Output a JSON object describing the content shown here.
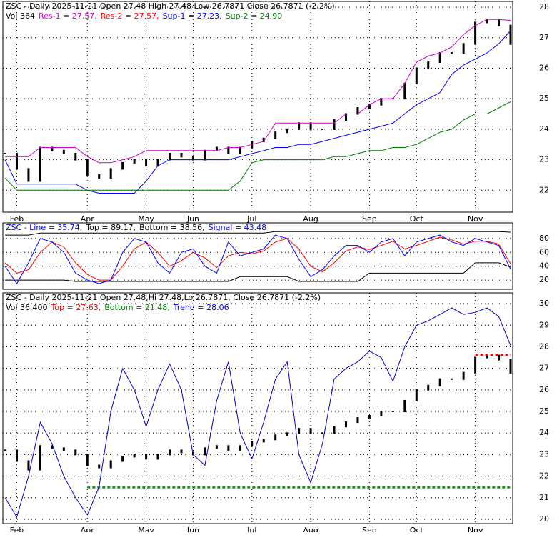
{
  "chart_data": [
    {
      "type": "line",
      "header": [
        [
          {
            "text": "ZSC - Daily 2025-11-21 Open 27.48  High 27.48  Low 26.7871  Close 26.7871 (-2.2%)",
            "color": "#000000"
          }
        ],
        [
          {
            "text": "Vol 364",
            "color": "#000000"
          },
          {
            "text": "Res-1 = 27.57,",
            "color": "#cc00cc"
          },
          {
            "text": "Res-2 = 27.57,",
            "color": "#ff0000"
          },
          {
            "text": "Sup-1 = 27.23,",
            "color": "#0000ff"
          },
          {
            "text": "Sup-2 = 24.90",
            "color": "#008000"
          }
        ]
      ],
      "categories": [
        null,
        "Feb",
        null,
        null,
        null,
        null,
        null,
        "Apr",
        null,
        null,
        null,
        null,
        "May",
        null,
        null,
        null,
        "Jun",
        null,
        null,
        null,
        null,
        "Jul",
        null,
        null,
        null,
        null,
        "Aug",
        null,
        null,
        null,
        null,
        "Sep",
        null,
        null,
        null,
        "Oct",
        null,
        null,
        null,
        null,
        "Nov",
        null,
        null,
        null
      ],
      "ylim": [
        21.28,
        28.19
      ],
      "yticks": [
        22,
        23,
        24,
        25,
        26,
        27,
        28
      ],
      "grid": true,
      "series": [
        {
          "color": "#000000",
          "style": "bars",
          "values": [
            23.2,
            22.7,
            22.3,
            23.4,
            23.3,
            23.2,
            23.0,
            22.5,
            22.4,
            22.7,
            22.9,
            23.0,
            22.8,
            23.0,
            23.2,
            23.1,
            23.0,
            23.3,
            23.4,
            23.2,
            23.4,
            23.6,
            23.7,
            23.9,
            24.0,
            24.2,
            24.0,
            24.0,
            24.3,
            24.5,
            24.7,
            24.8,
            25.0,
            25.0,
            25.5,
            26.0,
            26.2,
            26.5,
            26.5,
            26.8,
            27.5,
            27.6,
            27.4,
            26.79
          ]
        },
        {
          "color": "#cc00cc",
          "values": [
            23.1,
            23.1,
            23.1,
            23.4,
            23.4,
            23.4,
            23.4,
            23.1,
            22.9,
            22.9,
            23.0,
            23.1,
            23.3,
            23.3,
            23.3,
            23.3,
            23.3,
            23.3,
            23.3,
            23.4,
            23.4,
            23.5,
            23.6,
            24.2,
            24.2,
            24.2,
            24.2,
            24.2,
            24.2,
            24.5,
            24.5,
            24.8,
            25.0,
            25.0,
            25.5,
            26.2,
            26.4,
            26.5,
            26.7,
            27.1,
            27.4,
            27.6,
            27.6,
            27.57
          ]
        },
        {
          "color": "#0000ff",
          "values": [
            23.0,
            22.2,
            22.2,
            22.2,
            22.2,
            22.2,
            22.2,
            22.0,
            21.9,
            21.9,
            21.9,
            21.9,
            22.3,
            22.8,
            23.0,
            23.0,
            23.0,
            23.0,
            23.0,
            23.0,
            23.1,
            23.2,
            23.3,
            23.4,
            23.4,
            23.5,
            23.5,
            23.6,
            23.7,
            23.8,
            23.9,
            24.0,
            24.1,
            24.2,
            24.5,
            24.8,
            25.0,
            25.2,
            25.8,
            26.1,
            26.3,
            26.5,
            26.8,
            27.23
          ]
        },
        {
          "color": "#008000",
          "values": [
            22.4,
            22.0,
            22.0,
            22.0,
            22.0,
            22.0,
            22.0,
            22.0,
            22.0,
            22.0,
            22.0,
            22.0,
            22.0,
            22.0,
            22.0,
            22.0,
            22.0,
            22.0,
            22.0,
            22.0,
            22.3,
            22.9,
            23.0,
            23.0,
            23.0,
            23.0,
            23.0,
            23.0,
            23.1,
            23.1,
            23.2,
            23.3,
            23.3,
            23.4,
            23.4,
            23.5,
            23.7,
            23.9,
            24.0,
            24.3,
            24.5,
            24.5,
            24.7,
            24.9
          ]
        }
      ]
    },
    {
      "type": "line",
      "header": [
        [
          {
            "text": "ZSC - Line = 35.74,",
            "color": "#0000ff"
          },
          {
            "text": "Top = 89.17,",
            "color": "#000000"
          },
          {
            "text": "Bottom = 38.56,",
            "color": "#000000"
          },
          {
            "text": "Signal = 43.48",
            "color": "#0000ff"
          }
        ]
      ],
      "ylim": [
        6.7,
        102.6
      ],
      "yticks": [
        20,
        40,
        60,
        80
      ],
      "grid": true,
      "series": [
        {
          "color": "#000000",
          "values": [
            85,
            85,
            85,
            88,
            88,
            88,
            88,
            88,
            88,
            88,
            88,
            88,
            88,
            88,
            88,
            88,
            88,
            88,
            88,
            88,
            88,
            88,
            88,
            90,
            90,
            90,
            90,
            90,
            90,
            90,
            90,
            90,
            90,
            90,
            90,
            90,
            90,
            90,
            90,
            90,
            90,
            90,
            90,
            89.17
          ]
        },
        {
          "color": "#000000",
          "values": [
            20,
            20,
            20,
            20,
            20,
            20,
            18,
            18,
            18,
            18,
            18,
            18,
            18,
            18,
            18,
            18,
            18,
            18,
            18,
            18,
            25,
            25,
            25,
            25,
            25,
            18,
            18,
            18,
            18,
            18,
            18,
            30,
            30,
            30,
            30,
            30,
            30,
            30,
            30,
            30,
            45,
            45,
            45,
            38.56
          ]
        },
        {
          "color": "#ff0000",
          "values": [
            45,
            30,
            35,
            60,
            75,
            68,
            45,
            28,
            20,
            20,
            40,
            65,
            75,
            60,
            40,
            48,
            60,
            52,
            38,
            55,
            60,
            58,
            62,
            75,
            80,
            65,
            40,
            32,
            45,
            62,
            68,
            64,
            70,
            76,
            65,
            70,
            76,
            82,
            78,
            72,
            76,
            76,
            72,
            43.48
          ]
        },
        {
          "color": "#0000ff",
          "values": [
            40,
            15,
            45,
            80,
            75,
            60,
            30,
            20,
            15,
            20,
            60,
            80,
            75,
            45,
            30,
            60,
            65,
            40,
            30,
            75,
            55,
            60,
            65,
            85,
            80,
            50,
            25,
            35,
            55,
            70,
            70,
            60,
            75,
            80,
            55,
            75,
            80,
            85,
            75,
            70,
            80,
            75,
            70,
            35.74
          ]
        }
      ]
    },
    {
      "type": "line",
      "header": [
        [
          {
            "text": "ZSC - Daily 2025-11-21 Open 27.48,Hi 27.48,Lo 26.7871, Close 26.7871 (-2.2%)",
            "color": "#000000"
          }
        ],
        [
          {
            "text": "Vol 36,400",
            "color": "#000000"
          },
          {
            "text": "Top = 27.63,",
            "color": "#ff0000"
          },
          {
            "text": "Bottom = 21.48,",
            "color": "#008000"
          },
          {
            "text": "Trend = 28.06",
            "color": "#0000ff"
          }
        ]
      ],
      "categories": [
        null,
        "Feb",
        null,
        null,
        null,
        null,
        null,
        "Apr",
        null,
        null,
        null,
        null,
        "May",
        null,
        null,
        null,
        "Jun",
        null,
        null,
        null,
        null,
        "Jul",
        null,
        null,
        null,
        null,
        "Aug",
        null,
        null,
        null,
        null,
        "Sep",
        null,
        null,
        null,
        "Oct",
        null,
        null,
        null,
        null,
        "Nov",
        null,
        null,
        null
      ],
      "ylim": [
        19.8,
        30.5
      ],
      "yticks": [
        20,
        21,
        22,
        23,
        24,
        25,
        26,
        27,
        28,
        29,
        30
      ],
      "grid": true,
      "series": [
        {
          "color": "#000000",
          "style": "bars",
          "values": [
            23.2,
            22.7,
            22.3,
            23.4,
            23.3,
            23.2,
            23.0,
            22.5,
            22.4,
            22.7,
            22.9,
            23.0,
            22.8,
            23.0,
            23.2,
            23.1,
            23.0,
            23.3,
            23.4,
            23.2,
            23.4,
            23.6,
            23.7,
            23.9,
            24.0,
            24.2,
            24.0,
            24.0,
            24.3,
            24.5,
            24.7,
            24.8,
            25.0,
            25.0,
            25.5,
            26.0,
            26.2,
            26.5,
            26.5,
            26.8,
            27.5,
            27.6,
            27.4,
            26.79
          ]
        },
        {
          "color": "#ff0000",
          "style": "dashed",
          "values": [
            null,
            null,
            null,
            null,
            null,
            null,
            null,
            null,
            null,
            null,
            null,
            null,
            null,
            null,
            null,
            null,
            null,
            null,
            null,
            null,
            null,
            null,
            null,
            null,
            null,
            null,
            null,
            null,
            null,
            null,
            null,
            null,
            null,
            null,
            null,
            null,
            null,
            null,
            null,
            null,
            27.63,
            27.63,
            27.63,
            27.63
          ]
        },
        {
          "color": "#00a000",
          "style": "dashed",
          "values": [
            null,
            null,
            null,
            null,
            null,
            null,
            null,
            21.48,
            21.48,
            21.48,
            21.48,
            21.48,
            21.48,
            21.48,
            21.48,
            21.48,
            21.48,
            21.48,
            21.48,
            21.48,
            21.48,
            21.48,
            21.48,
            21.48,
            21.48,
            21.48,
            21.48,
            21.48,
            21.48,
            21.48,
            21.48,
            21.48,
            21.48,
            21.48,
            21.48,
            21.48,
            21.48,
            21.48,
            21.48,
            21.48,
            21.48,
            21.48,
            21.48,
            21.48
          ]
        },
        {
          "color": "#0000cc",
          "values": [
            21,
            20.1,
            22,
            24.5,
            23.5,
            22,
            21,
            20.2,
            21.5,
            25,
            27,
            26,
            24.3,
            26,
            27.2,
            26,
            23,
            22.5,
            25.5,
            27.3,
            24,
            22.8,
            24.5,
            26.5,
            27.3,
            23,
            21.7,
            23.5,
            26.5,
            27,
            27.3,
            27.8,
            27.5,
            26.4,
            28,
            29,
            29.2,
            29.5,
            29.8,
            29.5,
            29.6,
            29.8,
            29.4,
            28.06
          ]
        }
      ]
    }
  ]
}
